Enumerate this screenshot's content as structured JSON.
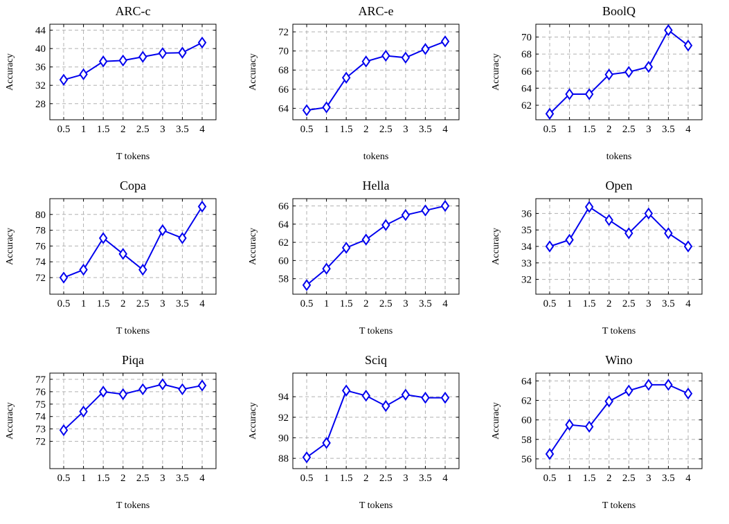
{
  "chart_data": [
    {
      "type": "line",
      "title": "ARC-c",
      "xlabel": "T tokens",
      "ylabel": "Accuracy",
      "categories": [
        "0.5",
        "1",
        "1.5",
        "2",
        "2.5",
        "3",
        "3.5",
        "4"
      ],
      "y_ticks": [
        28,
        32,
        36,
        40,
        44
      ],
      "ylim": [
        24.5,
        45.3
      ],
      "series": [
        {
          "values": [
            33.2,
            34.4,
            37.2,
            37.4,
            38.2,
            39.0,
            39.1,
            41.3
          ]
        }
      ]
    },
    {
      "type": "line",
      "title": "ARC-e",
      "xlabel": "tokens",
      "ylabel": "Accuracy",
      "categories": [
        "0.5",
        "1",
        "1.5",
        "2",
        "2.5",
        "3",
        "3.5",
        "4"
      ],
      "y_ticks": [
        64,
        66,
        68,
        70,
        72
      ],
      "ylim": [
        62.8,
        72.8
      ],
      "series": [
        {
          "values": [
            63.8,
            64.1,
            67.2,
            68.9,
            69.5,
            69.3,
            70.2,
            71.0
          ]
        }
      ]
    },
    {
      "type": "line",
      "title": "BoolQ",
      "xlabel": "tokens",
      "ylabel": "Accuracy",
      "categories": [
        "0.5",
        "1",
        "1.5",
        "2",
        "2.5",
        "3",
        "3.5",
        "4"
      ],
      "y_ticks": [
        62,
        64,
        66,
        68,
        70
      ],
      "ylim": [
        60.3,
        71.5
      ],
      "series": [
        {
          "values": [
            61.0,
            63.3,
            63.3,
            65.6,
            65.9,
            66.5,
            70.8,
            69.0
          ]
        }
      ]
    },
    {
      "type": "line",
      "title": "Copa",
      "xlabel": "T tokens",
      "ylabel": "Accuracy",
      "categories": [
        "0.5",
        "1",
        "1.5",
        "2",
        "2.5",
        "3",
        "3.5",
        "4"
      ],
      "y_ticks": [
        72,
        74,
        76,
        78,
        80
      ],
      "ylim": [
        69.9,
        82.0
      ],
      "series": [
        {
          "values": [
            72,
            73,
            77,
            75,
            73,
            78,
            77,
            81
          ]
        }
      ]
    },
    {
      "type": "line",
      "title": "Hella",
      "xlabel": "T tokens",
      "ylabel": "Accuracy",
      "categories": [
        "0.5",
        "1",
        "1.5",
        "2",
        "2.5",
        "3",
        "3.5",
        "4"
      ],
      "y_ticks": [
        58,
        60,
        62,
        64,
        66
      ],
      "ylim": [
        56.3,
        66.8
      ],
      "series": [
        {
          "values": [
            57.3,
            59.1,
            61.4,
            62.3,
            63.9,
            65.0,
            65.5,
            66.0
          ]
        }
      ]
    },
    {
      "type": "line",
      "title": "Open",
      "xlabel": "T tokens",
      "ylabel": "Accuracy",
      "categories": [
        "0.5",
        "1",
        "1.5",
        "2",
        "2.5",
        "3",
        "3.5",
        "4"
      ],
      "y_ticks": [
        32,
        33,
        34,
        35,
        36
      ],
      "ylim": [
        31.1,
        36.9
      ],
      "series": [
        {
          "values": [
            34.0,
            34.4,
            36.4,
            35.6,
            34.8,
            36.0,
            34.8,
            34.0
          ]
        }
      ]
    },
    {
      "type": "line",
      "title": "Piqa",
      "xlabel": "T tokens",
      "ylabel": "Accuracy",
      "categories": [
        "0.5",
        "1",
        "1.5",
        "2",
        "2.5",
        "3",
        "3.5",
        "4"
      ],
      "y_ticks": [
        72,
        73,
        74,
        75,
        76,
        77
      ],
      "ylim": [
        69.8,
        77.5
      ],
      "series": [
        {
          "values": [
            72.9,
            74.4,
            76.0,
            75.8,
            76.2,
            76.6,
            76.2,
            76.5
          ]
        }
      ]
    },
    {
      "type": "line",
      "title": "Sciq",
      "xlabel": "T tokens",
      "ylabel": "Accuracy",
      "categories": [
        "0.5",
        "1",
        "1.5",
        "2",
        "2.5",
        "3",
        "3.5",
        "4"
      ],
      "y_ticks": [
        88,
        90,
        92,
        94
      ],
      "ylim": [
        87.0,
        96.3
      ],
      "series": [
        {
          "values": [
            88.1,
            89.5,
            94.6,
            94.1,
            93.1,
            94.2,
            93.9,
            93.9
          ]
        }
      ]
    },
    {
      "type": "line",
      "title": "Wino",
      "xlabel": "T tokens",
      "ylabel": "Accuracy",
      "categories": [
        "0.5",
        "1",
        "1.5",
        "2",
        "2.5",
        "3",
        "3.5",
        "4"
      ],
      "y_ticks": [
        56,
        58,
        60,
        62,
        64
      ],
      "ylim": [
        55.0,
        64.8
      ],
      "series": [
        {
          "values": [
            56.5,
            59.5,
            59.3,
            61.9,
            63.0,
            63.6,
            63.6,
            62.7
          ]
        }
      ]
    }
  ]
}
